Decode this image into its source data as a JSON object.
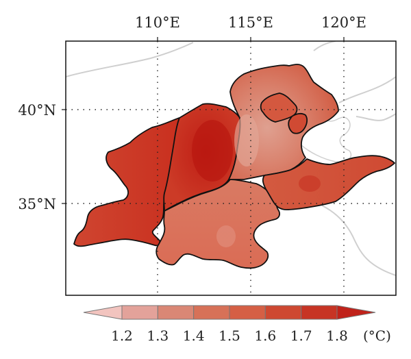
{
  "map": {
    "lon_ticks": [
      "110°E",
      "115°E",
      "120°E"
    ],
    "lat_ticks": [
      "40°N",
      "35°N"
    ],
    "colors": {
      "background": "#ffffff",
      "coast": "#cfcfcf",
      "border": "#111111",
      "grid": "#222222"
    }
  },
  "colorbar": {
    "labels": [
      "1.2",
      "1.3",
      "1.4",
      "1.5",
      "1.6",
      "1.7",
      "1.8"
    ],
    "unit": "(°C)",
    "colors": [
      "#f2c4bf",
      "#e3a29a",
      "#da8775",
      "#d77158",
      "#d55f45",
      "#ce4831",
      "#c73424",
      "#c0221a"
    ]
  }
}
